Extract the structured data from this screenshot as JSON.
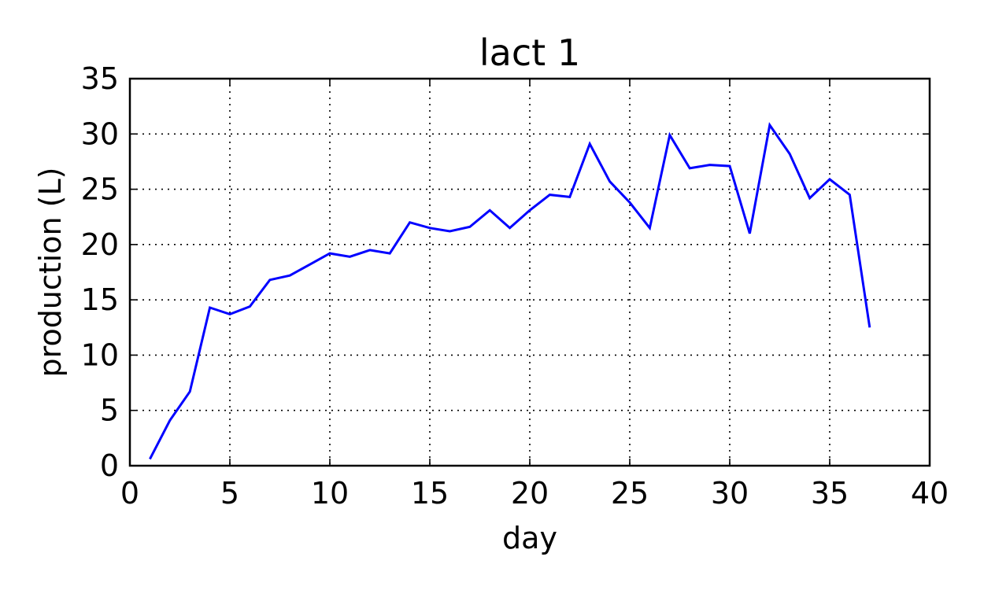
{
  "chart_data": {
    "type": "line",
    "title": "lact 1",
    "xlabel": "day",
    "ylabel": "production (L)",
    "xlim": [
      0,
      40
    ],
    "ylim": [
      0,
      35
    ],
    "xticks": [
      0,
      5,
      10,
      15,
      20,
      25,
      30,
      35,
      40
    ],
    "yticks": [
      0,
      5,
      10,
      15,
      20,
      25,
      30,
      35
    ],
    "grid": true,
    "series": [
      {
        "color": "#0000ff",
        "x": [
          1,
          2,
          3,
          4,
          5,
          6,
          7,
          8,
          9,
          10,
          11,
          12,
          13,
          14,
          15,
          16,
          17,
          18,
          19,
          20,
          21,
          22,
          23,
          24,
          25,
          26,
          27,
          28,
          29,
          30,
          31,
          32,
          33,
          34,
          35,
          36,
          37
        ],
        "y": [
          0.6,
          4.1,
          6.7,
          14.3,
          13.7,
          14.4,
          16.8,
          17.2,
          18.2,
          19.2,
          18.9,
          19.5,
          19.2,
          22.0,
          21.5,
          21.2,
          21.6,
          23.1,
          21.5,
          23.1,
          24.5,
          24.3,
          29.1,
          25.7,
          23.8,
          21.5,
          29.9,
          26.9,
          27.2,
          27.1,
          21.0,
          30.8,
          28.2,
          24.2,
          25.9,
          24.5,
          12.5
        ]
      }
    ]
  }
}
